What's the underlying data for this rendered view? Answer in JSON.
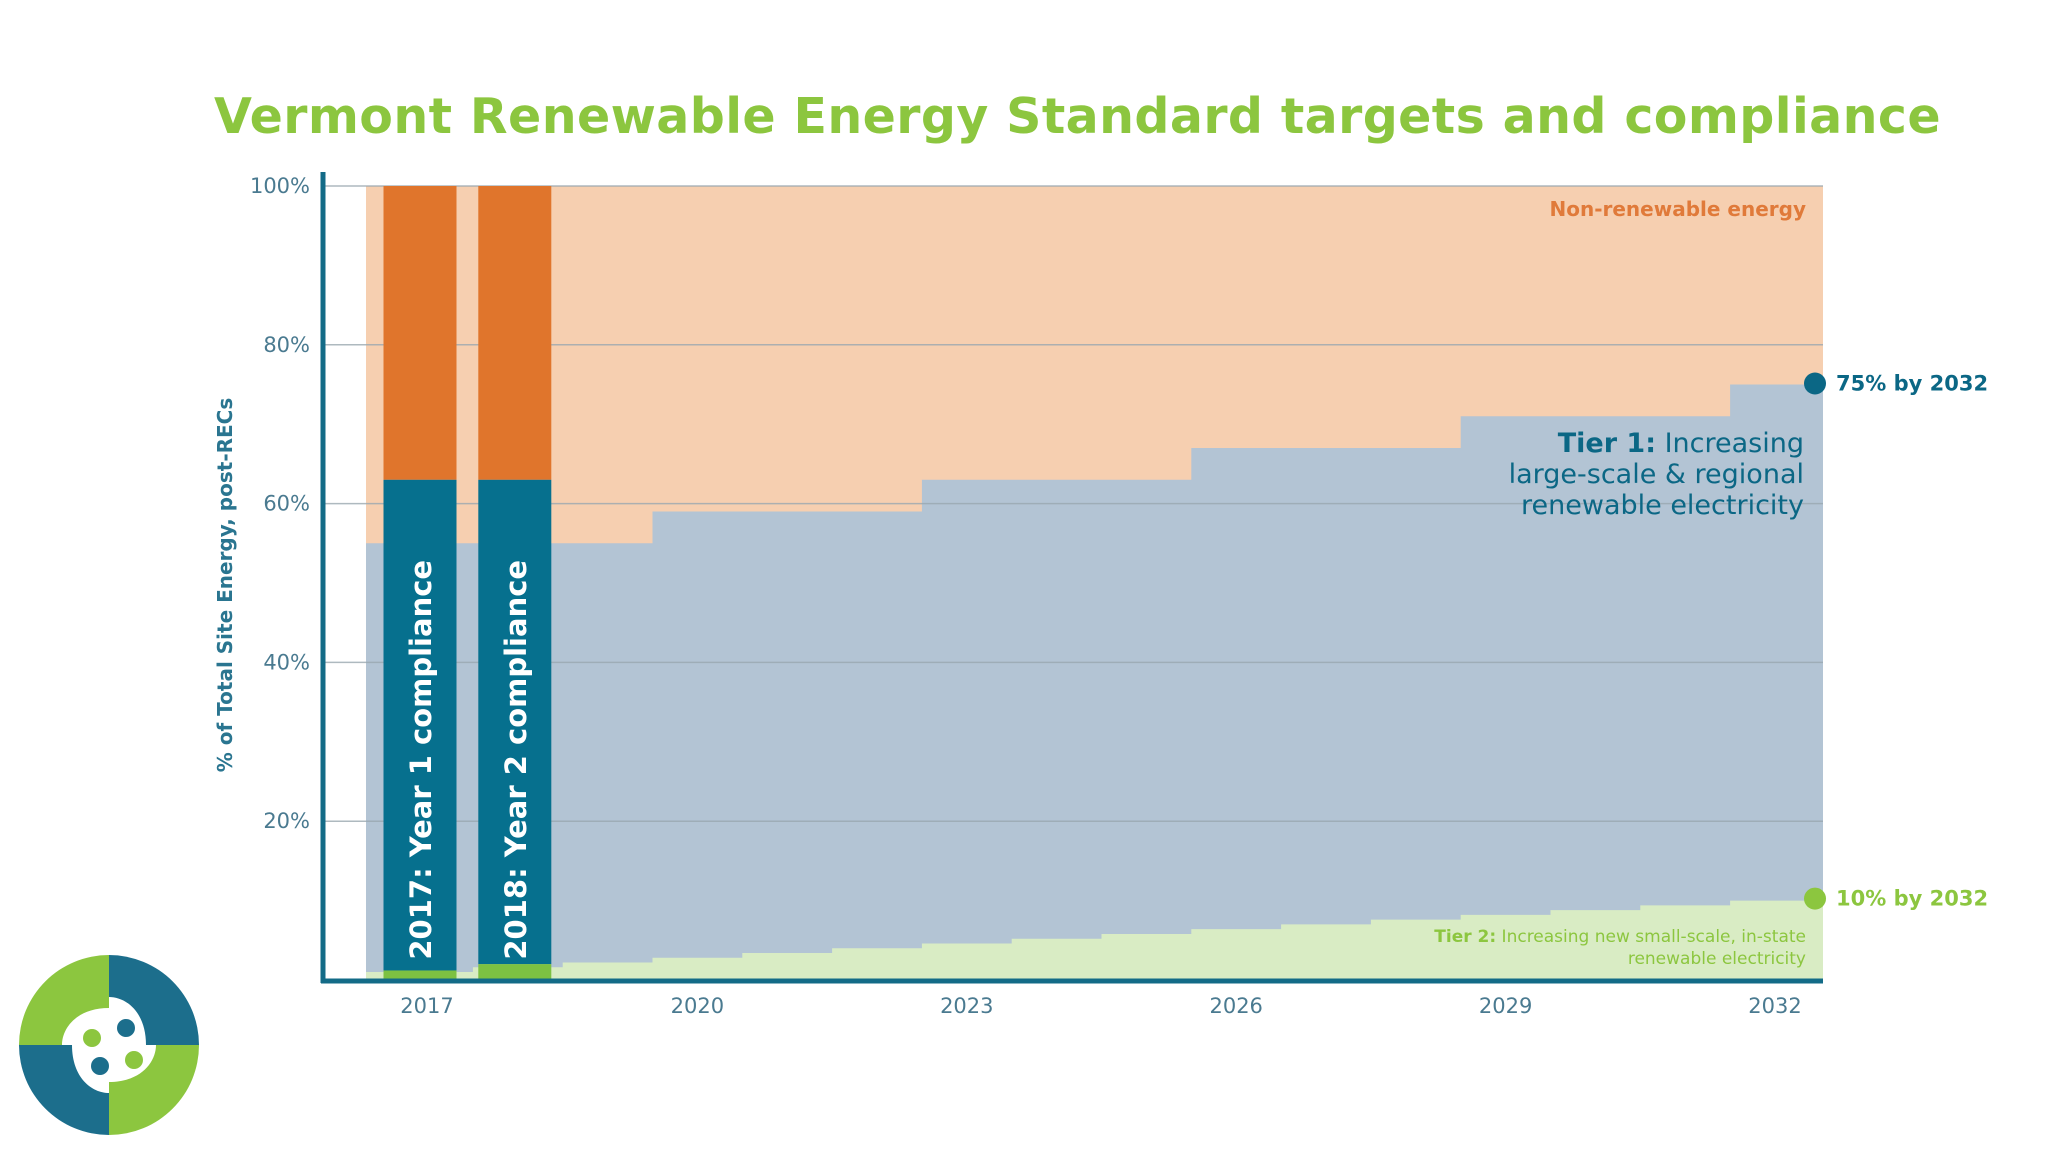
{
  "colors": {
    "title": "#8cc63f",
    "non_renewable": "#f6cfb0",
    "tier1_area": "#b3c4d4",
    "tier2_area": "#d9ecc4",
    "bar_nonrenewable": "#e0752c",
    "bar_tier1": "#06708e",
    "bar_tier2": "#7dc142",
    "axis": "#136b87",
    "grid": "#9aa8b0"
  },
  "chart_data": {
    "type": "area",
    "title": "Vermont Renewable Energy Standard targets and compliance",
    "ylabel": "% of Total Site Energy, post-RECs",
    "xlabel": "",
    "ylim": [
      0,
      100
    ],
    "yticks": [
      "20%",
      "40%",
      "60%",
      "80%",
      "100%"
    ],
    "ytick_values": [
      20,
      40,
      60,
      80,
      100
    ],
    "xticks": [
      "2017",
      "2020",
      "2023",
      "2026",
      "2029",
      "2032"
    ],
    "xtick_values": [
      2017,
      2020,
      2023,
      2026,
      2029,
      2032
    ],
    "grid": true,
    "series": [
      {
        "name": "Tier 1: Increasing large-scale & regional renewable electricity",
        "x": [
          2017,
          2018,
          2019,
          2020,
          2021,
          2022,
          2023,
          2024,
          2025,
          2026,
          2027,
          2028,
          2029,
          2030,
          2031,
          2032
        ],
        "values": [
          55,
          55,
          55,
          59,
          59,
          59,
          63,
          63,
          63,
          67,
          67,
          67,
          71,
          71,
          71,
          75
        ]
      },
      {
        "name": "Tier 2: Increasing new small-scale, in-state renewable electricity",
        "x": [
          2017,
          2018,
          2019,
          2020,
          2021,
          2022,
          2023,
          2024,
          2025,
          2026,
          2027,
          2028,
          2029,
          2030,
          2031,
          2032
        ],
        "values": [
          1,
          1.6,
          2.2,
          2.8,
          3.4,
          4,
          4.6,
          5.2,
          5.8,
          6.4,
          7,
          7.6,
          8.2,
          8.8,
          9.4,
          10
        ]
      }
    ],
    "compliance_bars": [
      {
        "label": "2017: Year 1 compliance",
        "x": 2017,
        "tier1": 63,
        "tier2": 1.2,
        "total": 100
      },
      {
        "label": "2018: Year 2 compliance",
        "x": 2018,
        "tier1": 63,
        "tier2": 2,
        "total": 100
      }
    ],
    "annotations": {
      "non_renewable": "Non-renewable energy",
      "tier1_bold": "Tier 1:",
      "tier1_line1_rest": " Increasing",
      "tier1_line2": "large-scale & regional",
      "tier1_line3": "renewable electricity",
      "tier2_bold": "Tier 2:",
      "tier2_line1_rest": " Increasing new small-scale, in-state",
      "tier2_line2": "renewable electricity",
      "target_tier1": "75% by 2032",
      "target_tier1_value": 75,
      "target_tier2": "10% by 2032",
      "target_tier2_value": 10
    }
  }
}
